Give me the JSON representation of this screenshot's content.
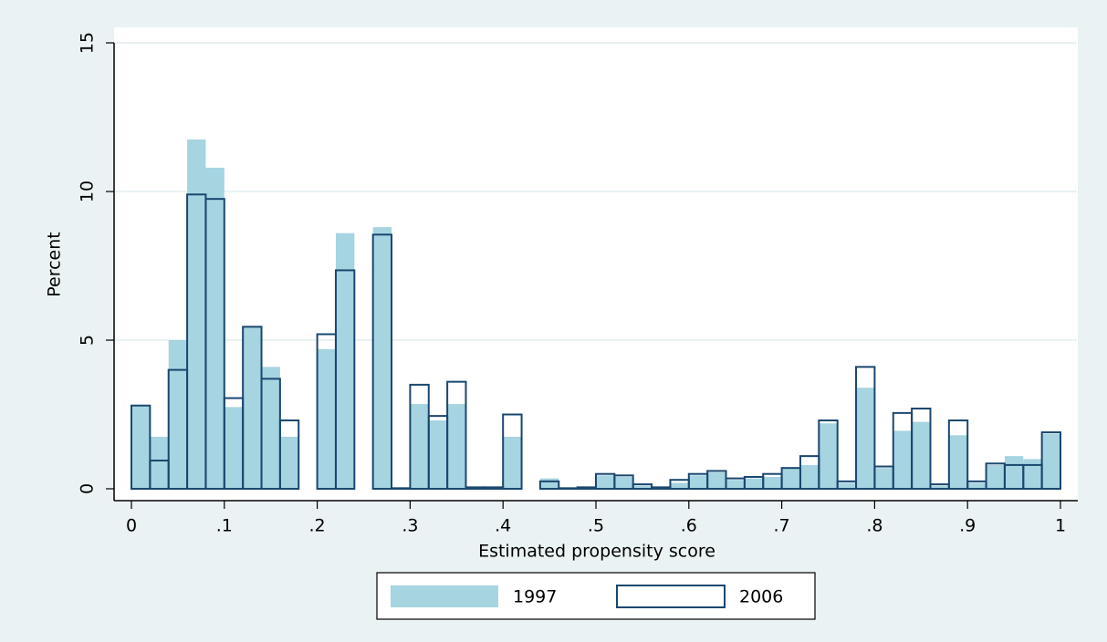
{
  "chart_data": {
    "type": "histogram",
    "xlabel": "Estimated propensity score",
    "ylabel": "Percent",
    "bins": [
      0,
      0.02,
      0.04,
      0.06,
      0.08,
      0.1,
      0.12,
      0.14,
      0.16,
      0.18,
      0.2,
      0.22,
      0.24,
      0.26,
      0.28,
      0.3,
      0.32,
      0.34,
      0.36,
      0.38,
      0.4,
      0.42,
      0.44,
      0.46,
      0.48,
      0.5,
      0.52,
      0.54,
      0.56,
      0.58,
      0.6,
      0.62,
      0.64,
      0.66,
      0.68,
      0.7,
      0.72,
      0.74,
      0.76,
      0.78,
      0.8,
      0.82,
      0.84,
      0.86,
      0.88,
      0.9,
      0.92,
      0.94,
      0.96,
      0.98,
      1
    ],
    "series": [
      {
        "name": "1997",
        "color": "#a6d4e0",
        "fill": true,
        "values": [
          2.8,
          1.75,
          5.0,
          11.75,
          10.8,
          2.75,
          5.45,
          4.1,
          1.75,
          0,
          4.7,
          8.6,
          0,
          8.8,
          0,
          2.85,
          2.3,
          2.85,
          0.05,
          0.05,
          1.75,
          0,
          0.35,
          0,
          0.05,
          0.45,
          0.4,
          0.1,
          0.05,
          0.2,
          0.45,
          0.55,
          0.3,
          0.35,
          0.4,
          0.7,
          0.8,
          2.2,
          0.2,
          3.4,
          0.7,
          1.95,
          2.25,
          0.1,
          1.8,
          0.2,
          0.8,
          1.1,
          1.0,
          1.85
        ]
      },
      {
        "name": "2006",
        "color": "#1a476f",
        "fill": false,
        "values": [
          2.8,
          0.95,
          4.0,
          9.9,
          9.75,
          3.05,
          5.45,
          3.7,
          2.3,
          0,
          5.2,
          7.35,
          0,
          8.55,
          0.02,
          3.5,
          2.45,
          3.6,
          0.05,
          0.05,
          2.5,
          0,
          0.25,
          0.02,
          0.05,
          0.5,
          0.45,
          0.15,
          0.05,
          0.3,
          0.5,
          0.6,
          0.35,
          0.4,
          0.5,
          0.7,
          1.1,
          2.3,
          0.25,
          4.1,
          0.75,
          2.55,
          2.7,
          0.15,
          2.3,
          0.25,
          0.85,
          0.8,
          0.8,
          1.9
        ]
      }
    ],
    "xlim": [
      0,
      1
    ],
    "xticks": [
      0,
      {
        "value": 0.1,
        "label": ".1"
      },
      {
        "value": 0.2,
        "label": ".2"
      },
      {
        "value": 0.3,
        "label": ".3"
      },
      {
        "value": 0.4,
        "label": ".4"
      },
      {
        "value": 0.5,
        "label": ".5"
      },
      {
        "value": 0.6,
        "label": ".6"
      },
      {
        "value": 0.7,
        "label": ".7"
      },
      {
        "value": 0.8,
        "label": ".8"
      },
      {
        "value": 0.9,
        "label": ".9"
      },
      1
    ],
    "ylim": [
      0,
      15
    ],
    "yticks": [
      0,
      5,
      10,
      15
    ],
    "grid": true,
    "legend": "bottom"
  }
}
